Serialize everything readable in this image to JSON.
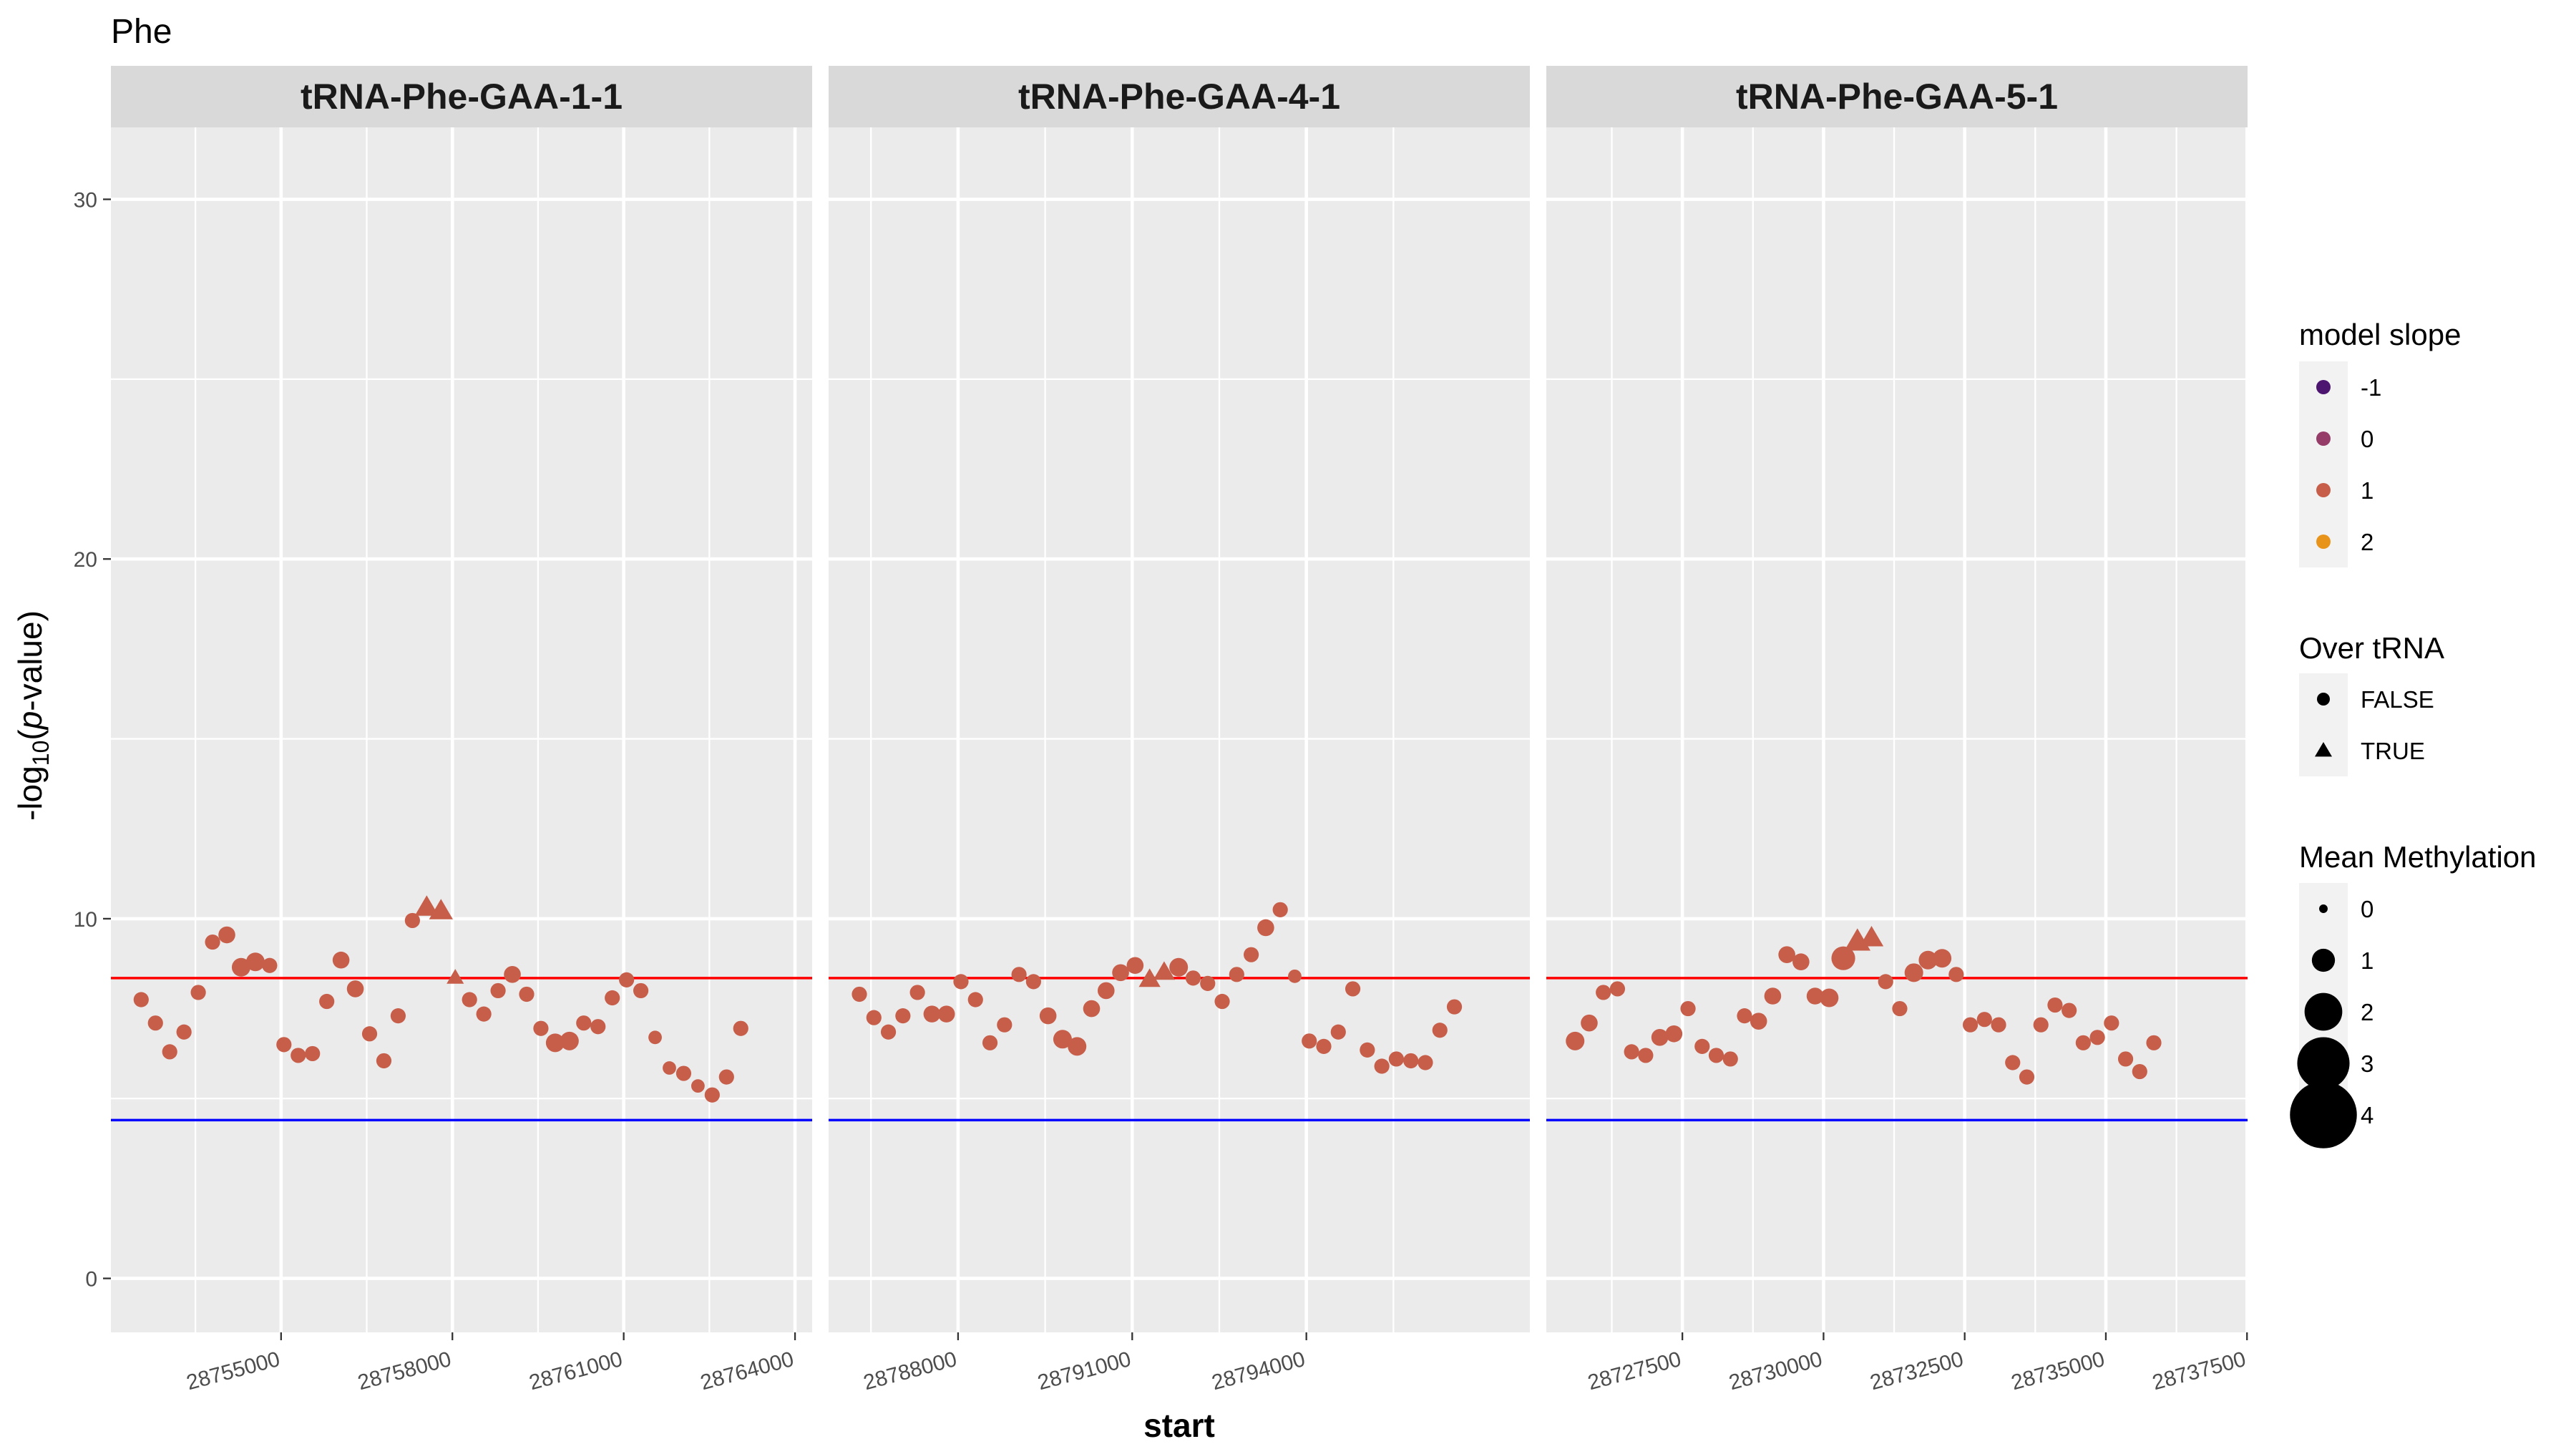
{
  "chart_data": {
    "type": "scatter",
    "title": "Phe",
    "xlabel": "start",
    "ylabel": "-log10(p-value)",
    "ylim": [
      -1.5,
      32
    ],
    "y_ticks": [
      0,
      10,
      20,
      30
    ],
    "grid": true,
    "reference_lines": [
      {
        "y": 8.35,
        "color": "#FF0000"
      },
      {
        "y": 4.4,
        "color": "#0000FF"
      }
    ],
    "legend_position": "right",
    "legends": [
      {
        "title": "model slope",
        "entries": [
          {
            "label": "-1",
            "color": "#4C1570"
          },
          {
            "label": "0",
            "color": "#953C69"
          },
          {
            "label": "1",
            "color": "#C65E4A"
          },
          {
            "label": "2",
            "color": "#E8941A"
          }
        ]
      },
      {
        "title": "Over tRNA",
        "entries": [
          {
            "label": "FALSE",
            "shape": "circle"
          },
          {
            "label": "TRUE",
            "shape": "triangle"
          }
        ]
      },
      {
        "title": "Mean Methylation",
        "entries": [
          {
            "label": "0",
            "value": 0
          },
          {
            "label": "1",
            "value": 1
          },
          {
            "label": "2",
            "value": 2
          },
          {
            "label": "3",
            "value": 3
          },
          {
            "label": "4",
            "value": 4
          }
        ]
      }
    ],
    "point_color": "#C65E4A",
    "panels": [
      {
        "name": "tRNA-Phe-GAA-1-1",
        "xlim": [
          28752020,
          28764300
        ],
        "x_ticks": [
          28755000,
          28758000,
          28761000,
          28764000
        ],
        "x_tick_labels": [
          "28755000",
          "28758000",
          "28761000",
          "28764000"
        ],
        "points": [
          {
            "x": 28752550,
            "y": 7.75,
            "over": false,
            "meth": 0.3
          },
          {
            "x": 28752800,
            "y": 7.1,
            "over": false,
            "meth": 0.3
          },
          {
            "x": 28753050,
            "y": 6.3,
            "over": false,
            "meth": 0.3
          },
          {
            "x": 28753300,
            "y": 6.85,
            "over": false,
            "meth": 0.3
          },
          {
            "x": 28753550,
            "y": 7.95,
            "over": false,
            "meth": 0.3
          },
          {
            "x": 28753800,
            "y": 9.35,
            "over": false,
            "meth": 0.3
          },
          {
            "x": 28754050,
            "y": 9.55,
            "over": false,
            "meth": 0.4
          },
          {
            "x": 28754300,
            "y": 8.65,
            "over": false,
            "meth": 0.5
          },
          {
            "x": 28754550,
            "y": 8.8,
            "over": false,
            "meth": 0.5
          },
          {
            "x": 28754800,
            "y": 8.7,
            "over": false,
            "meth": 0.3
          },
          {
            "x": 28755050,
            "y": 6.5,
            "over": false,
            "meth": 0.3
          },
          {
            "x": 28755300,
            "y": 6.2,
            "over": false,
            "meth": 0.3
          },
          {
            "x": 28755550,
            "y": 6.25,
            "over": false,
            "meth": 0.3
          },
          {
            "x": 28755800,
            "y": 7.7,
            "over": false,
            "meth": 0.3
          },
          {
            "x": 28756050,
            "y": 8.85,
            "over": false,
            "meth": 0.4
          },
          {
            "x": 28756300,
            "y": 8.05,
            "over": false,
            "meth": 0.4
          },
          {
            "x": 28756550,
            "y": 6.8,
            "over": false,
            "meth": 0.3
          },
          {
            "x": 28756800,
            "y": 6.05,
            "over": false,
            "meth": 0.3
          },
          {
            "x": 28757050,
            "y": 7.3,
            "over": false,
            "meth": 0.3
          },
          {
            "x": 28757300,
            "y": 9.95,
            "over": false,
            "meth": 0.3
          },
          {
            "x": 28757550,
            "y": 10.3,
            "over": true,
            "meth": 0.5
          },
          {
            "x": 28757800,
            "y": 10.2,
            "over": true,
            "meth": 0.5
          },
          {
            "x": 28758050,
            "y": 8.35,
            "over": true,
            "meth": 0.2
          },
          {
            "x": 28758300,
            "y": 7.75,
            "over": false,
            "meth": 0.3
          },
          {
            "x": 28758550,
            "y": 7.35,
            "over": false,
            "meth": 0.3
          },
          {
            "x": 28758800,
            "y": 8.0,
            "over": false,
            "meth": 0.3
          },
          {
            "x": 28759050,
            "y": 8.45,
            "over": false,
            "meth": 0.4
          },
          {
            "x": 28759300,
            "y": 7.9,
            "over": false,
            "meth": 0.3
          },
          {
            "x": 28759550,
            "y": 6.95,
            "over": false,
            "meth": 0.3
          },
          {
            "x": 28759800,
            "y": 6.55,
            "over": false,
            "meth": 0.5
          },
          {
            "x": 28760050,
            "y": 6.6,
            "over": false,
            "meth": 0.5
          },
          {
            "x": 28760300,
            "y": 7.1,
            "over": false,
            "meth": 0.3
          },
          {
            "x": 28760550,
            "y": 7.0,
            "over": false,
            "meth": 0.3
          },
          {
            "x": 28760800,
            "y": 7.8,
            "over": false,
            "meth": 0.3
          },
          {
            "x": 28761050,
            "y": 8.3,
            "over": false,
            "meth": 0.3
          },
          {
            "x": 28761300,
            "y": 8.0,
            "over": false,
            "meth": 0.3
          },
          {
            "x": 28761550,
            "y": 6.7,
            "over": false,
            "meth": 0.2
          },
          {
            "x": 28761800,
            "y": 5.85,
            "over": false,
            "meth": 0.2
          },
          {
            "x": 28762050,
            "y": 5.7,
            "over": false,
            "meth": 0.3
          },
          {
            "x": 28762300,
            "y": 5.35,
            "over": false,
            "meth": 0.2
          },
          {
            "x": 28762550,
            "y": 5.1,
            "over": false,
            "meth": 0.3
          },
          {
            "x": 28762800,
            "y": 5.6,
            "over": false,
            "meth": 0.3
          },
          {
            "x": 28763050,
            "y": 6.95,
            "over": false,
            "meth": 0.3
          }
        ]
      },
      {
        "name": "tRNA-Phe-GAA-4-1",
        "xlim": [
          28785770,
          28797850
        ],
        "x_ticks": [
          28788000,
          28791000,
          28794000
        ],
        "x_tick_labels": [
          "28788000",
          "28791000",
          "28794000"
        ],
        "points": [
          {
            "x": 28786300,
            "y": 7.9,
            "over": false,
            "meth": 0.3
          },
          {
            "x": 28786550,
            "y": 7.25,
            "over": false,
            "meth": 0.3
          },
          {
            "x": 28786800,
            "y": 6.85,
            "over": false,
            "meth": 0.3
          },
          {
            "x": 28787050,
            "y": 7.3,
            "over": false,
            "meth": 0.3
          },
          {
            "x": 28787300,
            "y": 7.95,
            "over": false,
            "meth": 0.3
          },
          {
            "x": 28787550,
            "y": 7.35,
            "over": false,
            "meth": 0.4
          },
          {
            "x": 28787800,
            "y": 7.35,
            "over": false,
            "meth": 0.4
          },
          {
            "x": 28788050,
            "y": 8.25,
            "over": false,
            "meth": 0.3
          },
          {
            "x": 28788300,
            "y": 7.75,
            "over": false,
            "meth": 0.3
          },
          {
            "x": 28788550,
            "y": 6.55,
            "over": false,
            "meth": 0.3
          },
          {
            "x": 28788800,
            "y": 7.05,
            "over": false,
            "meth": 0.3
          },
          {
            "x": 28789050,
            "y": 8.45,
            "over": false,
            "meth": 0.3
          },
          {
            "x": 28789300,
            "y": 8.25,
            "over": false,
            "meth": 0.3
          },
          {
            "x": 28789550,
            "y": 7.3,
            "over": false,
            "meth": 0.4
          },
          {
            "x": 28789800,
            "y": 6.65,
            "over": false,
            "meth": 0.5
          },
          {
            "x": 28790050,
            "y": 6.45,
            "over": false,
            "meth": 0.5
          },
          {
            "x": 28790300,
            "y": 7.5,
            "over": false,
            "meth": 0.4
          },
          {
            "x": 28790550,
            "y": 8.0,
            "over": false,
            "meth": 0.4
          },
          {
            "x": 28790800,
            "y": 8.5,
            "over": false,
            "meth": 0.4
          },
          {
            "x": 28791050,
            "y": 8.7,
            "over": false,
            "meth": 0.4
          },
          {
            "x": 28791300,
            "y": 8.3,
            "over": true,
            "meth": 0.4
          },
          {
            "x": 28791550,
            "y": 8.5,
            "over": true,
            "meth": 0.4
          },
          {
            "x": 28791800,
            "y": 8.65,
            "over": false,
            "meth": 0.5
          },
          {
            "x": 28792050,
            "y": 8.35,
            "over": false,
            "meth": 0.3
          },
          {
            "x": 28792300,
            "y": 8.2,
            "over": false,
            "meth": 0.3
          },
          {
            "x": 28792550,
            "y": 7.7,
            "over": false,
            "meth": 0.3
          },
          {
            "x": 28792800,
            "y": 8.45,
            "over": false,
            "meth": 0.3
          },
          {
            "x": 28793050,
            "y": 9.0,
            "over": false,
            "meth": 0.3
          },
          {
            "x": 28793300,
            "y": 9.75,
            "over": false,
            "meth": 0.4
          },
          {
            "x": 28793550,
            "y": 10.25,
            "over": false,
            "meth": 0.3
          },
          {
            "x": 28793800,
            "y": 8.4,
            "over": false,
            "meth": 0.2
          },
          {
            "x": 28794050,
            "y": 6.6,
            "over": false,
            "meth": 0.3
          },
          {
            "x": 28794300,
            "y": 6.45,
            "over": false,
            "meth": 0.3
          },
          {
            "x": 28794550,
            "y": 6.85,
            "over": false,
            "meth": 0.3
          },
          {
            "x": 28794800,
            "y": 8.05,
            "over": false,
            "meth": 0.3
          },
          {
            "x": 28795050,
            "y": 6.35,
            "over": false,
            "meth": 0.3
          },
          {
            "x": 28795300,
            "y": 5.9,
            "over": false,
            "meth": 0.3
          },
          {
            "x": 28795550,
            "y": 6.1,
            "over": false,
            "meth": 0.3
          },
          {
            "x": 28795800,
            "y": 6.05,
            "over": false,
            "meth": 0.3
          },
          {
            "x": 28796050,
            "y": 6.0,
            "over": false,
            "meth": 0.3
          },
          {
            "x": 28796300,
            "y": 6.9,
            "over": false,
            "meth": 0.3
          },
          {
            "x": 28796550,
            "y": 7.55,
            "over": false,
            "meth": 0.3
          }
        ]
      },
      {
        "name": "tRNA-Phe-GAA-5-1",
        "xlim": [
          28725090,
          28737510
        ],
        "x_ticks": [
          28727500,
          28730000,
          28732500,
          28735000,
          28737500
        ],
        "x_tick_labels": [
          "28727500",
          "28730000",
          "28732500",
          "28735000",
          "28737500"
        ],
        "points": [
          {
            "x": 28725600,
            "y": 6.6,
            "over": false,
            "meth": 0.5
          },
          {
            "x": 28725850,
            "y": 7.1,
            "over": false,
            "meth": 0.4
          },
          {
            "x": 28726100,
            "y": 7.95,
            "over": false,
            "meth": 0.3
          },
          {
            "x": 28726350,
            "y": 8.05,
            "over": false,
            "meth": 0.3
          },
          {
            "x": 28726600,
            "y": 6.3,
            "over": false,
            "meth": 0.3
          },
          {
            "x": 28726850,
            "y": 6.2,
            "over": false,
            "meth": 0.3
          },
          {
            "x": 28727100,
            "y": 6.7,
            "over": false,
            "meth": 0.4
          },
          {
            "x": 28727350,
            "y": 6.8,
            "over": false,
            "meth": 0.4
          },
          {
            "x": 28727600,
            "y": 7.5,
            "over": false,
            "meth": 0.3
          },
          {
            "x": 28727850,
            "y": 6.45,
            "over": false,
            "meth": 0.3
          },
          {
            "x": 28728100,
            "y": 6.2,
            "over": false,
            "meth": 0.3
          },
          {
            "x": 28728350,
            "y": 6.1,
            "over": false,
            "meth": 0.3
          },
          {
            "x": 28728600,
            "y": 7.3,
            "over": false,
            "meth": 0.3
          },
          {
            "x": 28728850,
            "y": 7.15,
            "over": false,
            "meth": 0.4
          },
          {
            "x": 28729100,
            "y": 7.85,
            "over": false,
            "meth": 0.4
          },
          {
            "x": 28729350,
            "y": 9.0,
            "over": false,
            "meth": 0.4
          },
          {
            "x": 28729600,
            "y": 8.8,
            "over": false,
            "meth": 0.4
          },
          {
            "x": 28729850,
            "y": 7.85,
            "over": false,
            "meth": 0.4
          },
          {
            "x": 28730100,
            "y": 7.8,
            "over": false,
            "meth": 0.5
          },
          {
            "x": 28730350,
            "y": 8.9,
            "over": false,
            "meth": 0.8
          },
          {
            "x": 28730600,
            "y": 9.35,
            "over": true,
            "meth": 0.6
          },
          {
            "x": 28730850,
            "y": 9.45,
            "over": true,
            "meth": 0.5
          },
          {
            "x": 28731100,
            "y": 8.25,
            "over": false,
            "meth": 0.3
          },
          {
            "x": 28731350,
            "y": 7.5,
            "over": false,
            "meth": 0.3
          },
          {
            "x": 28731600,
            "y": 8.5,
            "over": false,
            "meth": 0.5
          },
          {
            "x": 28731850,
            "y": 8.85,
            "over": false,
            "meth": 0.5
          },
          {
            "x": 28732100,
            "y": 8.9,
            "over": false,
            "meth": 0.5
          },
          {
            "x": 28732350,
            "y": 8.45,
            "over": false,
            "meth": 0.3
          },
          {
            "x": 28732600,
            "y": 7.05,
            "over": false,
            "meth": 0.3
          },
          {
            "x": 28732850,
            "y": 7.2,
            "over": false,
            "meth": 0.3
          },
          {
            "x": 28733100,
            "y": 7.05,
            "over": false,
            "meth": 0.3
          },
          {
            "x": 28733350,
            "y": 6.0,
            "over": false,
            "meth": 0.3
          },
          {
            "x": 28733600,
            "y": 5.6,
            "over": false,
            "meth": 0.3
          },
          {
            "x": 28733850,
            "y": 7.05,
            "over": false,
            "meth": 0.3
          },
          {
            "x": 28734100,
            "y": 7.6,
            "over": false,
            "meth": 0.3
          },
          {
            "x": 28734350,
            "y": 7.45,
            "over": false,
            "meth": 0.3
          },
          {
            "x": 28734600,
            "y": 6.55,
            "over": false,
            "meth": 0.3
          },
          {
            "x": 28734850,
            "y": 6.7,
            "over": false,
            "meth": 0.3
          },
          {
            "x": 28735100,
            "y": 7.1,
            "over": false,
            "meth": 0.3
          },
          {
            "x": 28735350,
            "y": 6.1,
            "over": false,
            "meth": 0.3
          },
          {
            "x": 28735600,
            "y": 5.75,
            "over": false,
            "meth": 0.3
          },
          {
            "x": 28735850,
            "y": 6.55,
            "over": false,
            "meth": 0.3
          }
        ]
      }
    ]
  }
}
